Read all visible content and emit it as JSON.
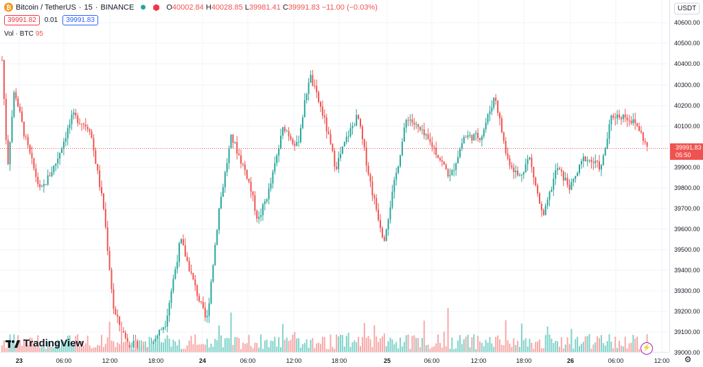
{
  "legend": {
    "symbol_icon": "bitcoin-icon",
    "symbol": "Bitcoin / TetherUS",
    "interval": "15",
    "exchange": "BINANCE",
    "open_label": "O",
    "open": "40002.84",
    "high_label": "H",
    "high": "40028.85",
    "low_label": "L",
    "low": "39981.41",
    "close_label": "C",
    "close": "39991.83",
    "change": "−11.00 (−0.03%)"
  },
  "order": {
    "sell_price": "39991.82",
    "spread": "0.01",
    "buy_price": "39991.83"
  },
  "volume": {
    "label": "Vol · BTC",
    "value": "95"
  },
  "price_axis": {
    "currency": "USDT",
    "labels": [
      "40600.00",
      "40500.00",
      "40400.00",
      "40300.00",
      "40200.00",
      "40100.00",
      "39900.00",
      "39800.00",
      "39700.00",
      "39600.00",
      "39500.00",
      "39400.00",
      "39300.00",
      "39200.00",
      "39100.00",
      "39000.00"
    ],
    "last_price": "39991.83",
    "countdown": "05:50"
  },
  "time_axis": {
    "labels": [
      "23",
      "06:00",
      "12:00",
      "18:00",
      "24",
      "06:00",
      "12:00",
      "18:00",
      "25",
      "06:00",
      "12:00",
      "18:00",
      "26",
      "06:00",
      "12:00"
    ]
  },
  "branding": {
    "logo_text": "TradingView"
  },
  "colors": {
    "up": "#26a69a",
    "down": "#ef5350",
    "up_volume": "#7fd3c9",
    "down_volume": "#f7a9a7"
  }
}
